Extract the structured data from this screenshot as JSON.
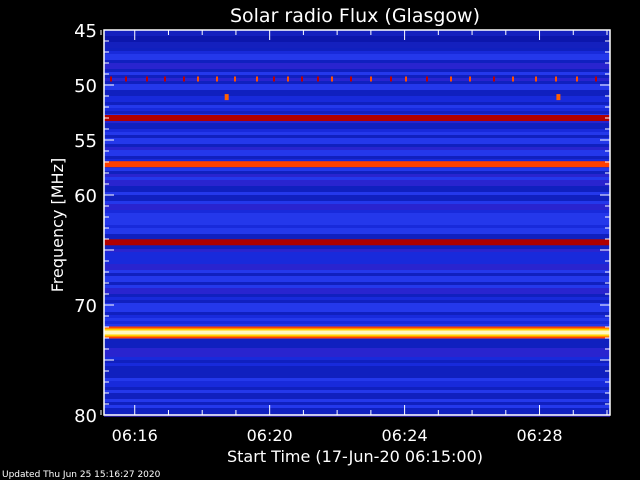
{
  "footer": {
    "updated": "Updated Thu Jun 25 15:16:27 2020"
  },
  "chart_data": {
    "type": "heatmap",
    "title": "Solar radio Flux (Glasgow)",
    "xlabel": "Start Time (17-Jun-20 06:15:00)",
    "ylabel": "Frequency [MHz]",
    "x_range": [
      "06:15",
      "06:30"
    ],
    "y_range": [
      45,
      80
    ],
    "y_reversed": true,
    "x_ticks": [
      "06:16",
      "06:20",
      "06:24",
      "06:28"
    ],
    "y_ticks": [
      45,
      50,
      55,
      60,
      70,
      80
    ],
    "background_color": "#1a2fe0",
    "bands": [
      {
        "freq_mhz": 53.0,
        "color": "#b00000"
      },
      {
        "freq_mhz": 57.2,
        "color": "#ff4000"
      },
      {
        "freq_mhz": 64.3,
        "color": "#b00000"
      },
      {
        "freq_mhz": 72.5,
        "color": "#fff8c0"
      }
    ],
    "spots": [
      {
        "time": "06:18:40",
        "freq_mhz": 51.1,
        "color": "#ff6000"
      },
      {
        "time": "06:28:30",
        "freq_mhz": 51.1,
        "color": "#ff6000"
      }
    ]
  }
}
